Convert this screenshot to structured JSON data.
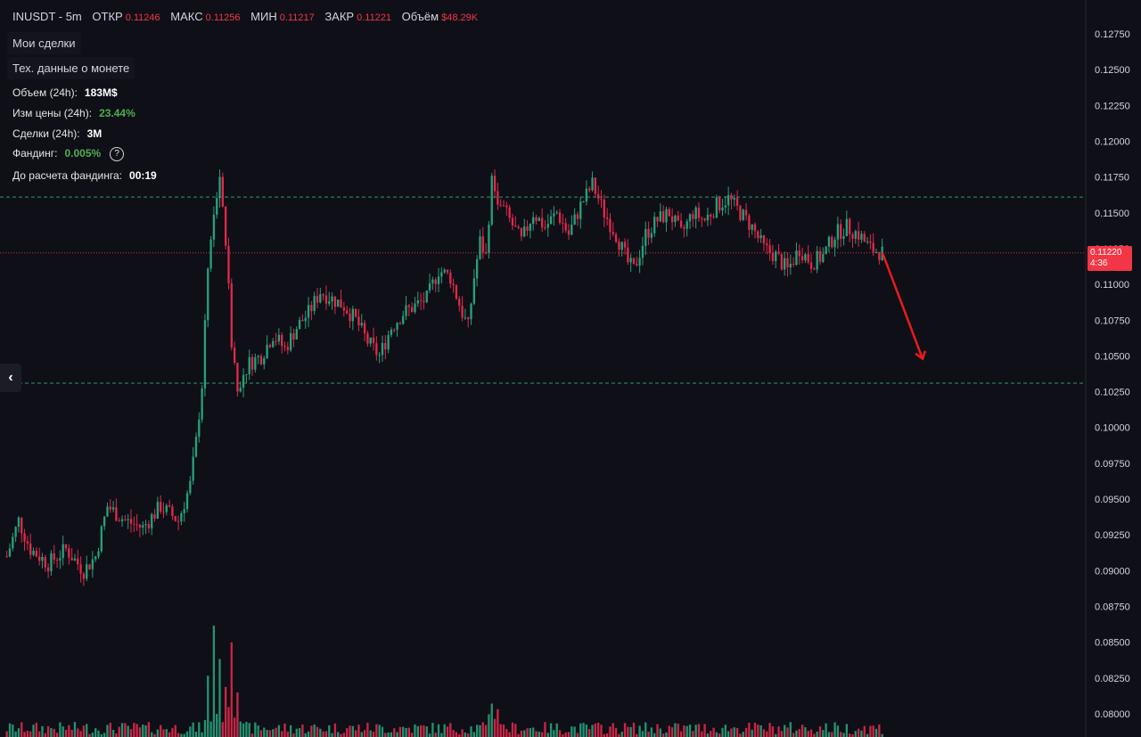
{
  "header": {
    "symbol": "INUSDT - 5m",
    "open_label": "ОТКР",
    "open_value": "0.11246",
    "high_label": "МАКС",
    "high_value": "0.11256",
    "low_label": "МИН",
    "low_value": "0.11217",
    "close_label": "ЗАКР",
    "close_value": "0.11221",
    "volume_label": "Объём",
    "volume_value": "$48.29K"
  },
  "buttons": {
    "my_trades": "Мои сделки",
    "coin_data": "Тех. данные о монете"
  },
  "stats": {
    "volume_label": "Объем (24h):",
    "volume_value": "183M$",
    "change_label": "Изм цены  (24h):",
    "change_value": "23.44%",
    "trades_label": "Сделки (24h):",
    "trades_value": "3M",
    "funding_label": "Фандинг:",
    "funding_value": "0.005%",
    "funding_help": "?",
    "countdown_label": "До расчета фандинга:",
    "countdown_value": "00:19"
  },
  "collapse_glyph": "‹",
  "price_tag": {
    "price": "0.11220",
    "timer": "4:36"
  },
  "colors": {
    "background": "#0f0f17",
    "up": "#26a17b",
    "down": "#e0294a",
    "support_line": "#2e9b6a",
    "current_price_line": "#c8324a",
    "arrow": "#e81c1c",
    "axis_text": "#d1d4dc"
  },
  "chart_data": {
    "type": "candlestick",
    "symbol": "INUSDT",
    "interval": "5m",
    "y_ticks": [
      "0.12750",
      "0.12500",
      "0.12250",
      "0.12000",
      "0.11750",
      "0.11500",
      "0.11250",
      "0.11000",
      "0.10750",
      "0.10500",
      "0.10250",
      "0.10000",
      "0.09750",
      "0.09500",
      "0.09250",
      "0.09000",
      "0.08750",
      "0.08500",
      "0.08250",
      "0.08000"
    ],
    "ylim": [
      0.0795,
      0.1285
    ],
    "current_price": 0.1122,
    "horizontal_lines": [
      {
        "price": 0.1161,
        "style": "dashed",
        "color": "#2e9b6a"
      },
      {
        "price": 0.1122,
        "style": "dotted",
        "color": "#c8324a"
      },
      {
        "price": 0.1031,
        "style": "dashed",
        "color": "#2e9b6a"
      }
    ],
    "arrow": {
      "from_price": 0.1122,
      "to_price": 0.1048,
      "direction": "down"
    },
    "close_path": [
      [
        0,
        0.091
      ],
      [
        4,
        0.0935
      ],
      [
        8,
        0.0915
      ],
      [
        14,
        0.0905
      ],
      [
        20,
        0.0915
      ],
      [
        26,
        0.09
      ],
      [
        30,
        0.091
      ],
      [
        34,
        0.0945
      ],
      [
        40,
        0.0935
      ],
      [
        46,
        0.093
      ],
      [
        52,
        0.0945
      ],
      [
        58,
        0.0935
      ],
      [
        62,
        0.096
      ],
      [
        64,
        0.099
      ],
      [
        66,
        0.103
      ],
      [
        68,
        0.111
      ],
      [
        70,
        0.115
      ],
      [
        72,
        0.117
      ],
      [
        74,
        0.113
      ],
      [
        76,
        0.106
      ],
      [
        78,
        0.103
      ],
      [
        82,
        0.1045
      ],
      [
        86,
        0.105
      ],
      [
        90,
        0.1065
      ],
      [
        94,
        0.1055
      ],
      [
        98,
        0.107
      ],
      [
        102,
        0.108
      ],
      [
        106,
        0.1095
      ],
      [
        110,
        0.109
      ],
      [
        114,
        0.1085
      ],
      [
        118,
        0.1075
      ],
      [
        122,
        0.106
      ],
      [
        126,
        0.105
      ],
      [
        130,
        0.107
      ],
      [
        134,
        0.108
      ],
      [
        138,
        0.1085
      ],
      [
        142,
        0.109
      ],
      [
        146,
        0.111
      ],
      [
        150,
        0.1105
      ],
      [
        154,
        0.108
      ],
      [
        156,
        0.107
      ],
      [
        158,
        0.1105
      ],
      [
        160,
        0.113
      ],
      [
        162,
        0.112
      ],
      [
        164,
        0.1175
      ],
      [
        166,
        0.116
      ],
      [
        170,
        0.1145
      ],
      [
        174,
        0.113
      ],
      [
        178,
        0.115
      ],
      [
        182,
        0.114
      ],
      [
        186,
        0.115
      ],
      [
        190,
        0.1135
      ],
      [
        194,
        0.1155
      ],
      [
        198,
        0.117
      ],
      [
        202,
        0.115
      ],
      [
        206,
        0.1135
      ],
      [
        210,
        0.1115
      ],
      [
        212,
        0.111
      ],
      [
        216,
        0.1135
      ],
      [
        220,
        0.1145
      ],
      [
        224,
        0.115
      ],
      [
        228,
        0.1135
      ],
      [
        232,
        0.115
      ],
      [
        236,
        0.1145
      ],
      [
        240,
        0.1155
      ],
      [
        244,
        0.116
      ],
      [
        248,
        0.115
      ],
      [
        252,
        0.114
      ],
      [
        256,
        0.1125
      ],
      [
        260,
        0.112
      ],
      [
        264,
        0.111
      ],
      [
        268,
        0.1125
      ],
      [
        272,
        0.1115
      ],
      [
        276,
        0.112
      ],
      [
        280,
        0.1135
      ],
      [
        284,
        0.114
      ],
      [
        288,
        0.1135
      ],
      [
        292,
        0.1125
      ],
      [
        296,
        0.1122
      ]
    ],
    "volume_spikes": [
      [
        68,
        0.55
      ],
      [
        70,
        1.0
      ],
      [
        72,
        0.7
      ],
      [
        74,
        0.45
      ],
      [
        76,
        0.85
      ],
      [
        78,
        0.4
      ],
      [
        164,
        0.3
      ],
      [
        166,
        0.25
      ]
    ]
  }
}
